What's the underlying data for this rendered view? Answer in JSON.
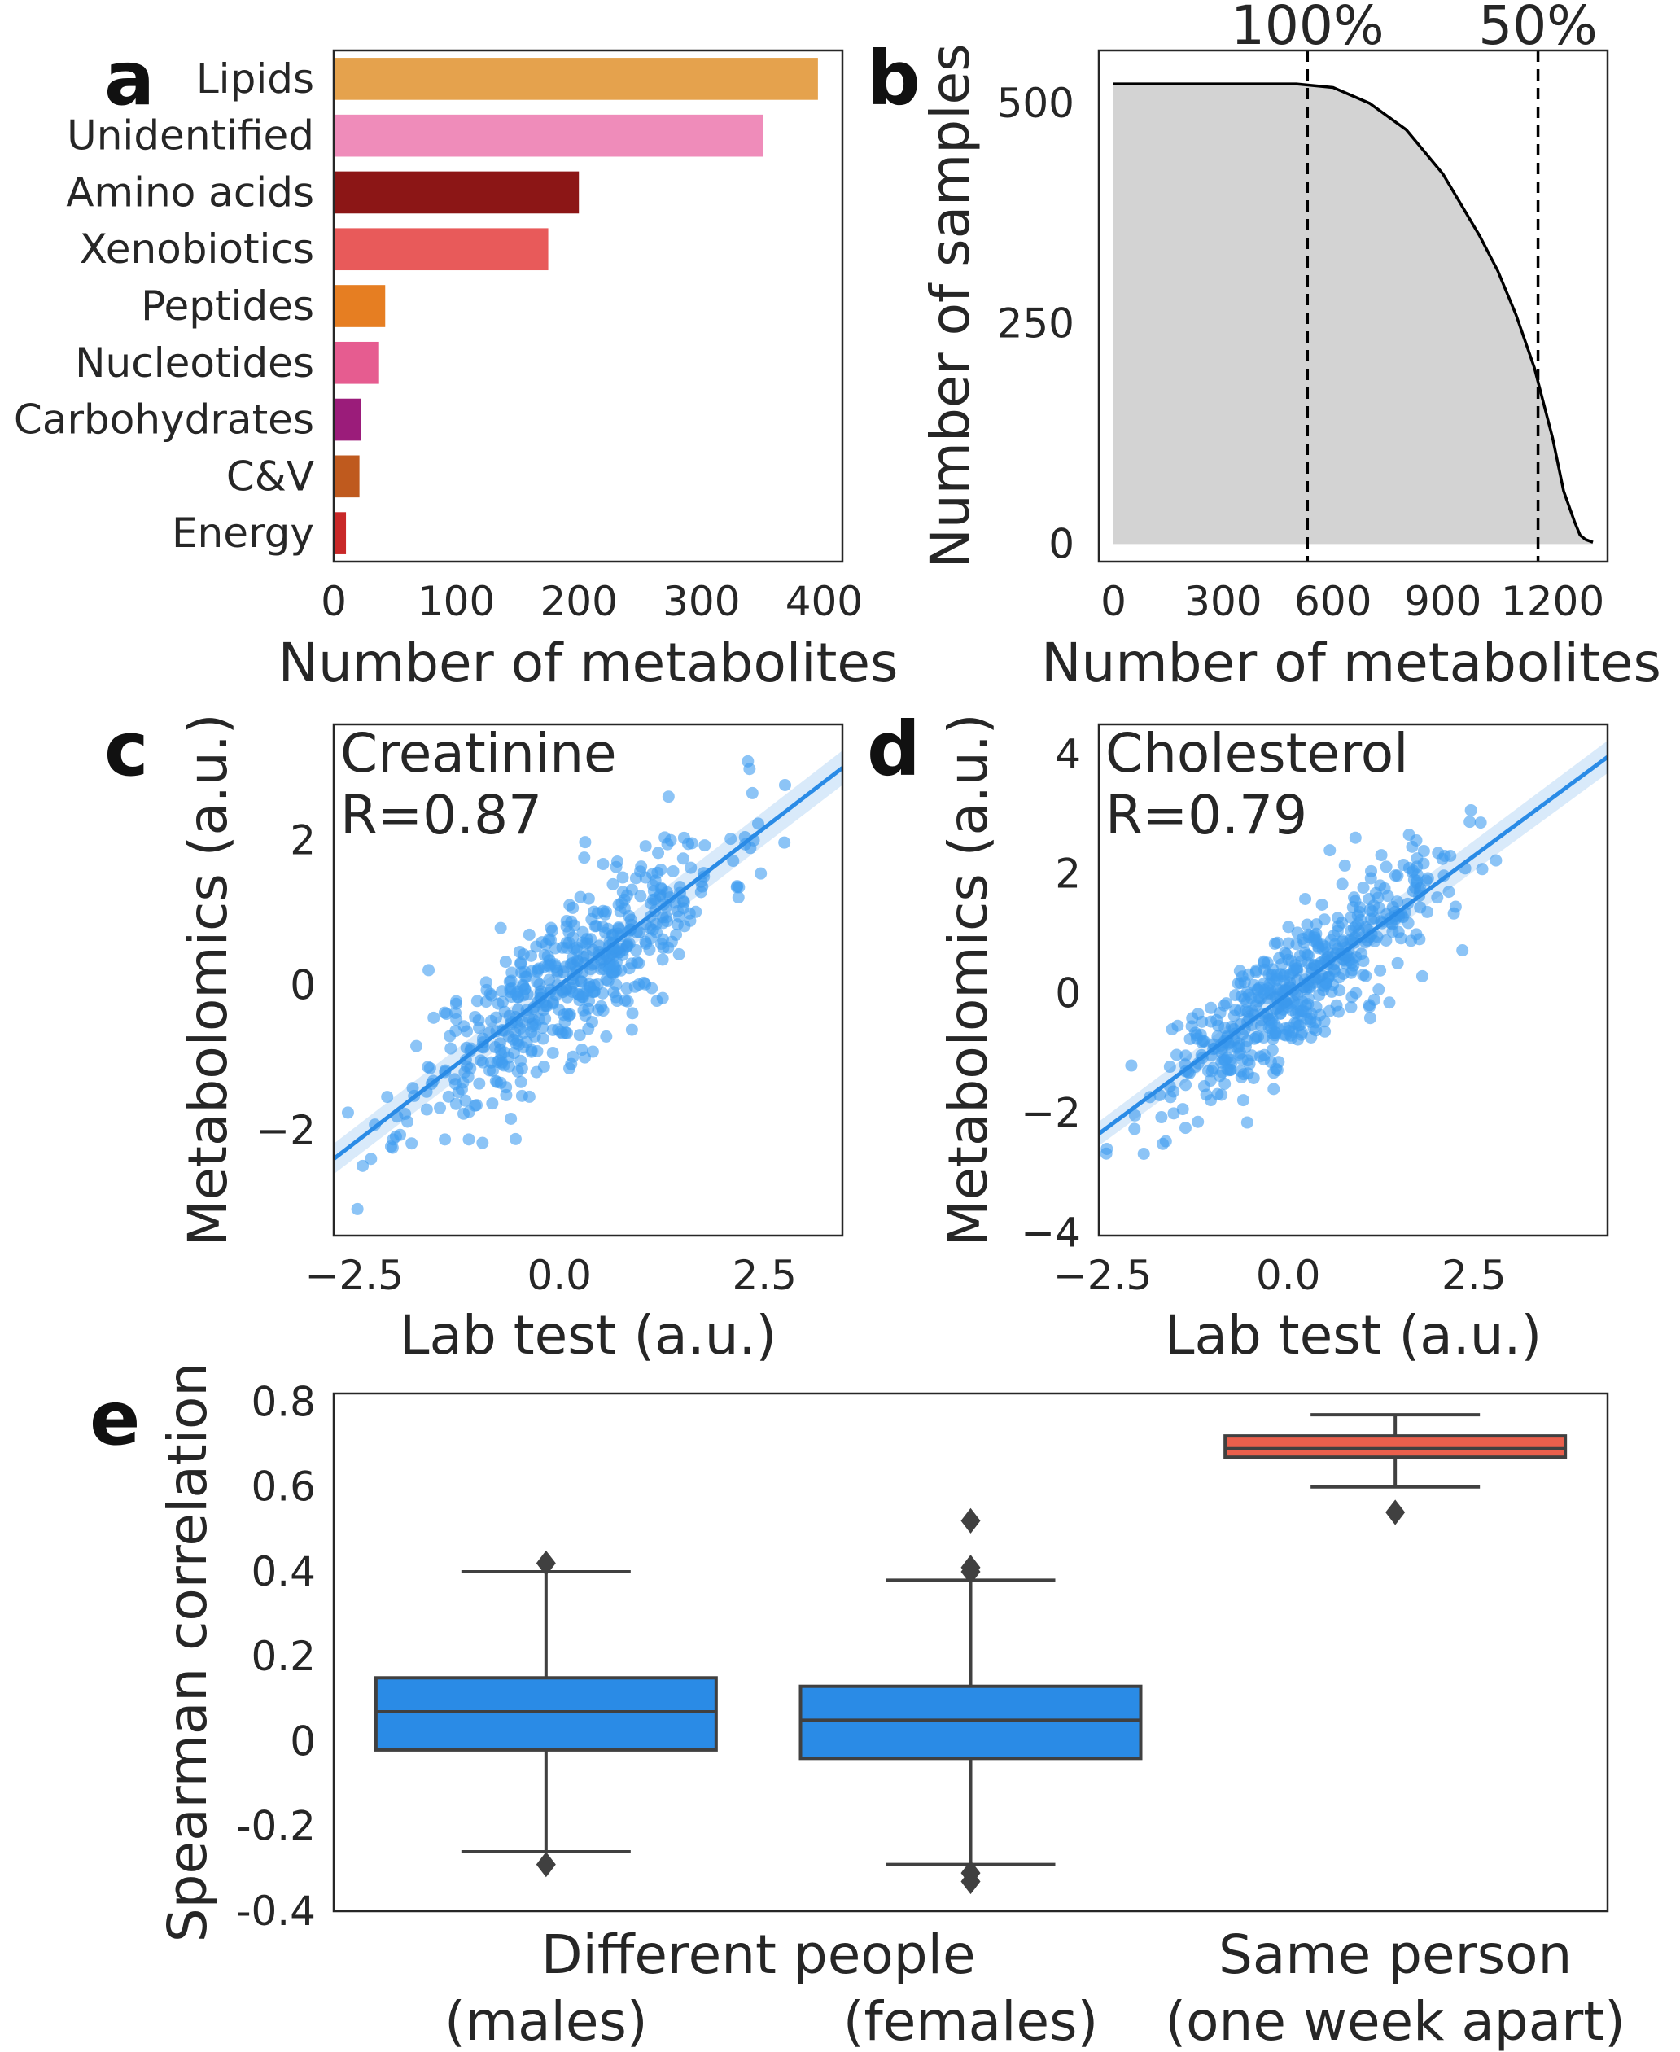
{
  "colors": {
    "frame": "#262626",
    "blue": "#2a8be6",
    "scatter_blue": "#3f9cf0",
    "box_edge": "#404040",
    "fill_gray": "#d3d3d3",
    "red_box": "#ea5f4c"
  },
  "chart_data": [
    {
      "panel": "a",
      "type": "bar",
      "orientation": "horizontal",
      "categories": [
        "Lipids",
        "Unidentified",
        "Amino acids",
        "Xenobiotics",
        "Peptides",
        "Nucleotides",
        "Carbohydrates",
        "C&V",
        "Energy"
      ],
      "values": [
        395,
        350,
        200,
        175,
        42,
        37,
        22,
        21,
        10
      ],
      "bar_colors": [
        "#e5a24d",
        "#ef8cba",
        "#8c1616",
        "#e85a5a",
        "#e67e22",
        "#e65c90",
        "#9b1c7a",
        "#bf5a1e",
        "#c82828"
      ],
      "xlabel": "Number of metabolites",
      "xlim": [
        0,
        415
      ],
      "xticks": [
        "0",
        "100",
        "200",
        "300",
        "400"
      ],
      "xtick_values": [
        0,
        100,
        200,
        300,
        400
      ]
    },
    {
      "panel": "b",
      "type": "area",
      "x": [
        0,
        300,
        500,
        600,
        700,
        800,
        900,
        1000,
        1050,
        1100,
        1150,
        1200,
        1230,
        1260,
        1275,
        1290,
        1310
      ],
      "y": [
        522,
        522,
        522,
        518,
        500,
        470,
        420,
        350,
        310,
        260,
        200,
        120,
        60,
        25,
        10,
        5,
        2
      ],
      "xlabel": "Number of metabolites",
      "ylabel": "Number of samples",
      "xlim": [
        -40,
        1350
      ],
      "ylim": [
        -20,
        560
      ],
      "xticks": [
        "0",
        "300",
        "600",
        "900",
        "1200"
      ],
      "xtick_values": [
        0,
        300,
        600,
        900,
        1200
      ],
      "yticks": [
        "0",
        "250",
        "500"
      ],
      "ytick_values": [
        0,
        250,
        500
      ],
      "vlines": [
        {
          "x": 530,
          "label": "100%"
        },
        {
          "x": 1160,
          "label": "50%"
        }
      ]
    },
    {
      "panel": "c",
      "type": "scatter",
      "annotation_name": "Creatinine",
      "annotation_r": "R=0.87",
      "xlabel": "Lab test (a.u.)",
      "ylabel": "Metabolomics (a.u.)",
      "xlim": [
        -2.75,
        3.45
      ],
      "ylim": [
        -3.45,
        3.6
      ],
      "xticks": [
        "−2.5",
        "0.0",
        "2.5"
      ],
      "xtick_values": [
        -2.5,
        0,
        2.5
      ],
      "yticks": [
        "−2",
        "0",
        "2"
      ],
      "ytick_values": [
        -2,
        0,
        2
      ],
      "n_points": 520,
      "regression": {
        "slope": 0.87,
        "intercept": 0.0
      },
      "seed": 11
    },
    {
      "panel": "d",
      "type": "scatter",
      "annotation_name": "Cholesterol",
      "annotation_r": "R=0.79",
      "xlabel": "Lab test (a.u.)",
      "ylabel": "Metabolomics (a.u.)",
      "xlim": [
        -2.55,
        4.3
      ],
      "ylim": [
        -4.05,
        4.5
      ],
      "xticks": [
        "−2.5",
        "0.0",
        "2.5"
      ],
      "xtick_values": [
        -2.5,
        0,
        2.5
      ],
      "yticks": [
        "−4",
        "−2",
        "0",
        "2",
        "4"
      ],
      "ytick_values": [
        -4,
        -2,
        0,
        2,
        4
      ],
      "n_points": 520,
      "regression": {
        "slope": 0.92,
        "intercept": 0.0
      },
      "seed": 29
    },
    {
      "panel": "e",
      "type": "box",
      "ylabel": "Spearman correlation",
      "ylim": [
        -0.4,
        0.82
      ],
      "yticks": [
        "-0.4",
        "-0.2",
        "0",
        "0.2",
        "0.4",
        "0.6",
        "0.8"
      ],
      "ytick_values": [
        -0.4,
        -0.2,
        0,
        0.2,
        0.4,
        0.6,
        0.8
      ],
      "group_header": "Different people",
      "boxes": [
        {
          "label": "(males)",
          "q1": -0.02,
          "median": 0.07,
          "q3": 0.15,
          "whisker_low": -0.26,
          "whisker_high": 0.4,
          "outliers": [
            0.42,
            -0.29
          ],
          "color": "#2a8be6"
        },
        {
          "label": "(females)",
          "q1": -0.04,
          "median": 0.05,
          "q3": 0.13,
          "whisker_low": -0.29,
          "whisker_high": 0.38,
          "outliers": [
            0.52,
            0.41,
            0.4,
            -0.31,
            -0.33
          ],
          "color": "#2a8be6"
        },
        {
          "label": "(one week apart)",
          "header": "Same person",
          "q1": 0.67,
          "median": 0.69,
          "q3": 0.72,
          "whisker_low": 0.6,
          "whisker_high": 0.77,
          "outliers": [
            0.54
          ],
          "color": "#ea5f4c"
        }
      ]
    }
  ],
  "panel_labels": [
    "a",
    "b",
    "c",
    "d",
    "e"
  ]
}
